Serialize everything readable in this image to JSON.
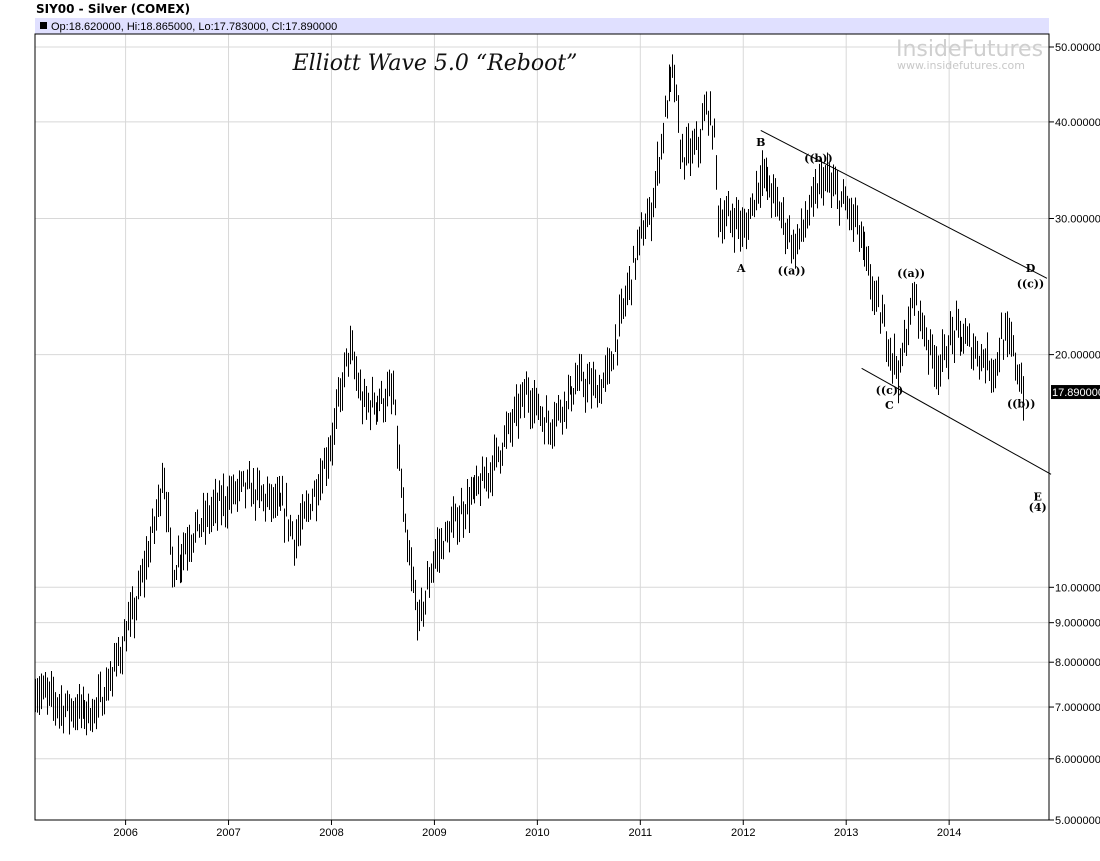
{
  "header": {
    "title": "SIY00 - Silver (COMEX)",
    "ohlc": "Op:18.620000, Hi:18.865000, Lo:17.783000, Cl:17.890000"
  },
  "watermark": {
    "brand": "InsideFutures",
    "url": "www.insidefutures.com"
  },
  "chart_data": {
    "type": "ohlc",
    "title": "Elliott Wave 5.0 “Reboot”",
    "scale": "log",
    "ylim": [
      5,
      50
    ],
    "xlim": [
      2005.12,
      2014.97
    ],
    "y_ticks": [
      "50.000000",
      "40.000000",
      "30.000000",
      "20.000000",
      "10.000000",
      "9.000000",
      "8.000000",
      "7.000000",
      "6.000000",
      "5.000000"
    ],
    "y_tick_values": [
      50,
      40,
      30,
      20,
      10,
      9,
      8,
      7,
      6,
      5
    ],
    "x_ticks": [
      "2006",
      "2007",
      "2008",
      "2009",
      "2010",
      "2011",
      "2012",
      "2013",
      "2014"
    ],
    "last_price": "17.890000",
    "last_value": 17.89,
    "price_path": [
      [
        2005.12,
        7.4
      ],
      [
        2005.4,
        7.0
      ],
      [
        2005.7,
        6.9
      ],
      [
        2005.85,
        7.6
      ],
      [
        2006.1,
        9.5
      ],
      [
        2006.3,
        12.5
      ],
      [
        2006.36,
        14.3
      ],
      [
        2006.45,
        10.5
      ],
      [
        2006.6,
        11.5
      ],
      [
        2006.9,
        12.8
      ],
      [
        2007.15,
        13.5
      ],
      [
        2007.55,
        12.6
      ],
      [
        2007.65,
        11.5
      ],
      [
        2007.9,
        14.0
      ],
      [
        2008.0,
        15.5
      ],
      [
        2008.17,
        20.5
      ],
      [
        2008.3,
        17.2
      ],
      [
        2008.5,
        17.5
      ],
      [
        2008.6,
        17.8
      ],
      [
        2008.72,
        11.5
      ],
      [
        2008.85,
        9.0
      ],
      [
        2009.0,
        11.0
      ],
      [
        2009.3,
        12.8
      ],
      [
        2009.5,
        13.8
      ],
      [
        2009.9,
        18.0
      ],
      [
        2010.1,
        16.2
      ],
      [
        2010.4,
        18.5
      ],
      [
        2010.6,
        18.0
      ],
      [
        2010.7,
        19.2
      ],
      [
        2010.85,
        23.5
      ],
      [
        2011.0,
        28.5
      ],
      [
        2011.1,
        30.5
      ],
      [
        2011.25,
        42
      ],
      [
        2011.32,
        47
      ],
      [
        2011.4,
        36
      ],
      [
        2011.55,
        37
      ],
      [
        2011.65,
        42
      ],
      [
        2011.72,
        38
      ],
      [
        2011.76,
        30
      ],
      [
        2011.95,
        30
      ],
      [
        2012.0,
        28.5
      ],
      [
        2012.17,
        34.5
      ],
      [
        2012.3,
        32
      ],
      [
        2012.5,
        27.5
      ],
      [
        2012.7,
        32
      ],
      [
        2012.77,
        34
      ],
      [
        2013.0,
        31
      ],
      [
        2013.1,
        29.5
      ],
      [
        2013.25,
        24.5
      ],
      [
        2013.45,
        20.0
      ],
      [
        2013.52,
        19.0
      ],
      [
        2013.6,
        22.0
      ],
      [
        2013.66,
        23.8
      ],
      [
        2013.8,
        20.5
      ],
      [
        2013.9,
        19.3
      ],
      [
        2014.05,
        21.5
      ],
      [
        2014.3,
        20.0
      ],
      [
        2014.45,
        19.2
      ],
      [
        2014.5,
        21.0
      ],
      [
        2014.6,
        20.6
      ],
      [
        2014.72,
        17.9
      ]
    ],
    "trendlines": [
      {
        "name": "upper-channel",
        "from": [
          2012.17,
          39.0
        ],
        "to": [
          2014.95,
          25.1
        ]
      },
      {
        "name": "lower-channel",
        "from": [
          2013.15,
          19.2
        ],
        "to": [
          2014.99,
          14.0
        ]
      }
    ],
    "annotations": [
      {
        "label": "A",
        "x": 2011.98,
        "y": 25.9
      },
      {
        "label": "B",
        "x": 2012.17,
        "y": 37.7
      },
      {
        "label": "((b))",
        "x": 2012.73,
        "y": 35.9
      },
      {
        "label": "((a))",
        "x": 2012.47,
        "y": 25.7
      },
      {
        "label": "((a))",
        "x": 2013.63,
        "y": 25.5
      },
      {
        "label": "D",
        "x": 2014.79,
        "y": 25.9
      },
      {
        "label": "((c))",
        "x": 2014.79,
        "y": 24.7
      },
      {
        "label": "((c))",
        "x": 2013.42,
        "y": 18.0
      },
      {
        "label": "C",
        "x": 2013.42,
        "y": 17.2
      },
      {
        "label": "((b))",
        "x": 2014.7,
        "y": 17.3
      },
      {
        "label": "E",
        "x": 2014.86,
        "y": 13.1
      },
      {
        "label": "(4)",
        "x": 2014.86,
        "y": 12.7
      }
    ]
  }
}
